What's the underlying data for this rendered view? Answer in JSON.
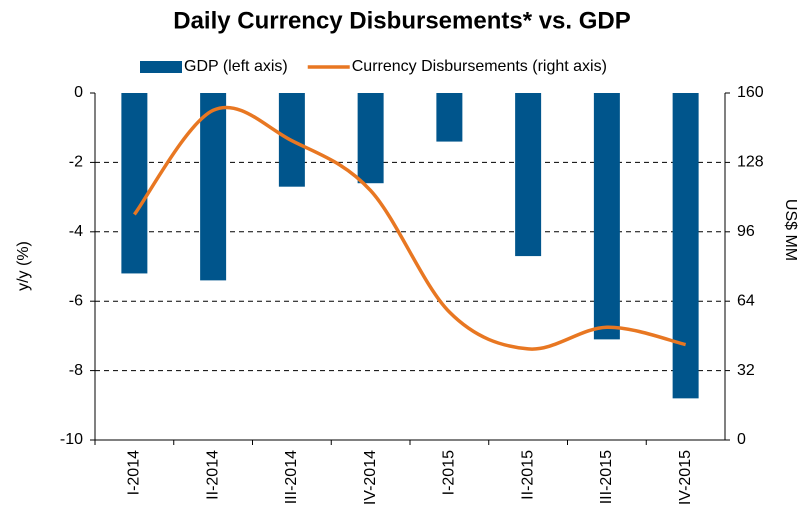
{
  "chart_data": {
    "type": "bar_line",
    "title": "Daily Currency Disbursements* vs. GDP",
    "categories": [
      "I-2014",
      "II-2014",
      "III-2014",
      "IV-2014",
      "I-2015",
      "II-2015",
      "III-2015",
      "IV-2015"
    ],
    "series": [
      {
        "name": "GDP (left axis)",
        "color": "#00558c",
        "type": "bar",
        "values": [
          -5.2,
          -5.4,
          -2.7,
          -2.6,
          -1.4,
          -4.7,
          -7.1,
          -8.8
        ]
      },
      {
        "name": "Currency Disbursements (right axis)",
        "color": "#e87722",
        "type": "line",
        "axis": "y2",
        "values": [
          104,
          152,
          138,
          115,
          59,
          42,
          52,
          44
        ]
      }
    ],
    "ylabel": "y/y (%)",
    "y2label": "US$ MM",
    "ylim": [
      -10,
      0
    ],
    "yticks": [
      0,
      -2,
      -4,
      -6,
      -8,
      -10
    ],
    "y2lim": [
      0,
      160
    ],
    "y2ticks": [
      0,
      32,
      64,
      96,
      128,
      160
    ],
    "grid": true,
    "legend": "top"
  }
}
